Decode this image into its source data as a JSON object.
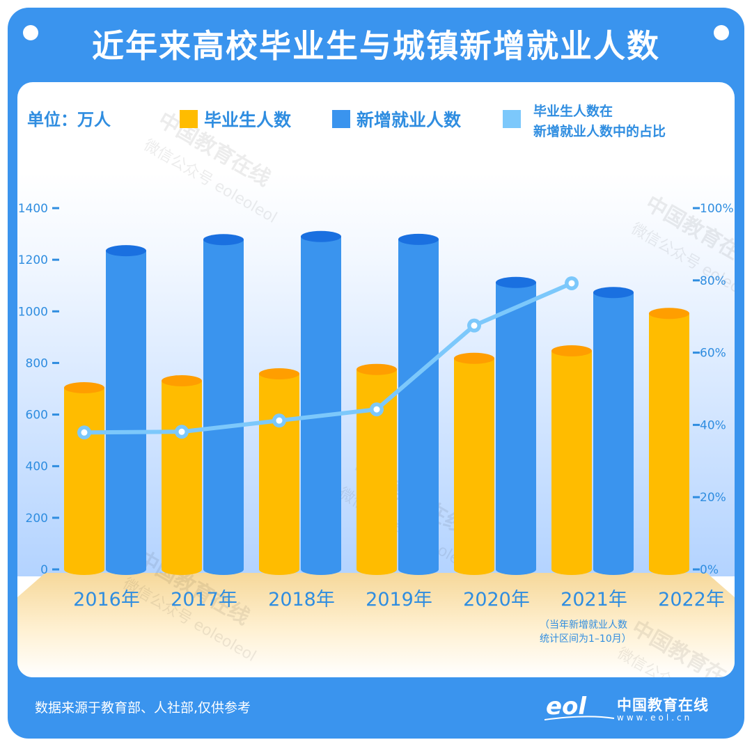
{
  "title": "近年来高校毕业生与城镇新增就业人数",
  "unit_label": "单位：万人",
  "source_note": "数据来源于教育部、人社部,仅供参考",
  "logo": {
    "name": "中国教育在线",
    "url": "www.eol.cn",
    "mark_text": "eol"
  },
  "watermark": [
    "中国教育在线",
    "微信公众号 eoleoleol"
  ],
  "footnote": [
    "（当年新增就业人数",
    "统计区间为1–10月）"
  ],
  "legend": [
    {
      "label": "毕业生人数",
      "color": "#ffbc00"
    },
    {
      "label": "新增就业人数",
      "color": "#3a94ee"
    },
    {
      "label_lines": [
        "毕业生人数在",
        "新增就业人数中的占比"
      ],
      "color": "#7cc8fb"
    }
  ],
  "chart_data": {
    "type": "bar",
    "categories": [
      "2016年",
      "2017年",
      "2018年",
      "2019年",
      "2020年",
      "2021年",
      "2022年"
    ],
    "series": [
      {
        "name": "毕业生人数",
        "type": "bar",
        "axis": "left",
        "color": "#ffbc00",
        "values": [
          704,
          731,
          758,
          775,
          818,
          847,
          992
        ]
      },
      {
        "name": "新增就业人数",
        "type": "bar",
        "axis": "left",
        "color": "#3a94ee",
        "values": [
          1235,
          1278,
          1290,
          1279,
          1112,
          1073,
          null
        ]
      },
      {
        "name": "毕业生人数在新增就业人数中的占比",
        "type": "line",
        "axis": "right",
        "color": "#7cc8fb",
        "values": [
          37.9,
          38.1,
          41.2,
          44.3,
          67.5,
          79.2,
          null
        ]
      }
    ],
    "y_left": {
      "range": [
        0,
        1400
      ],
      "ticks": [
        "0",
        "200",
        "400",
        "600",
        "800",
        "1000",
        "1200",
        "1400"
      ]
    },
    "y_right": {
      "range": [
        0,
        100
      ],
      "ticks": [
        "0%",
        "20%",
        "40%",
        "60%",
        "80%",
        "100%"
      ]
    }
  }
}
